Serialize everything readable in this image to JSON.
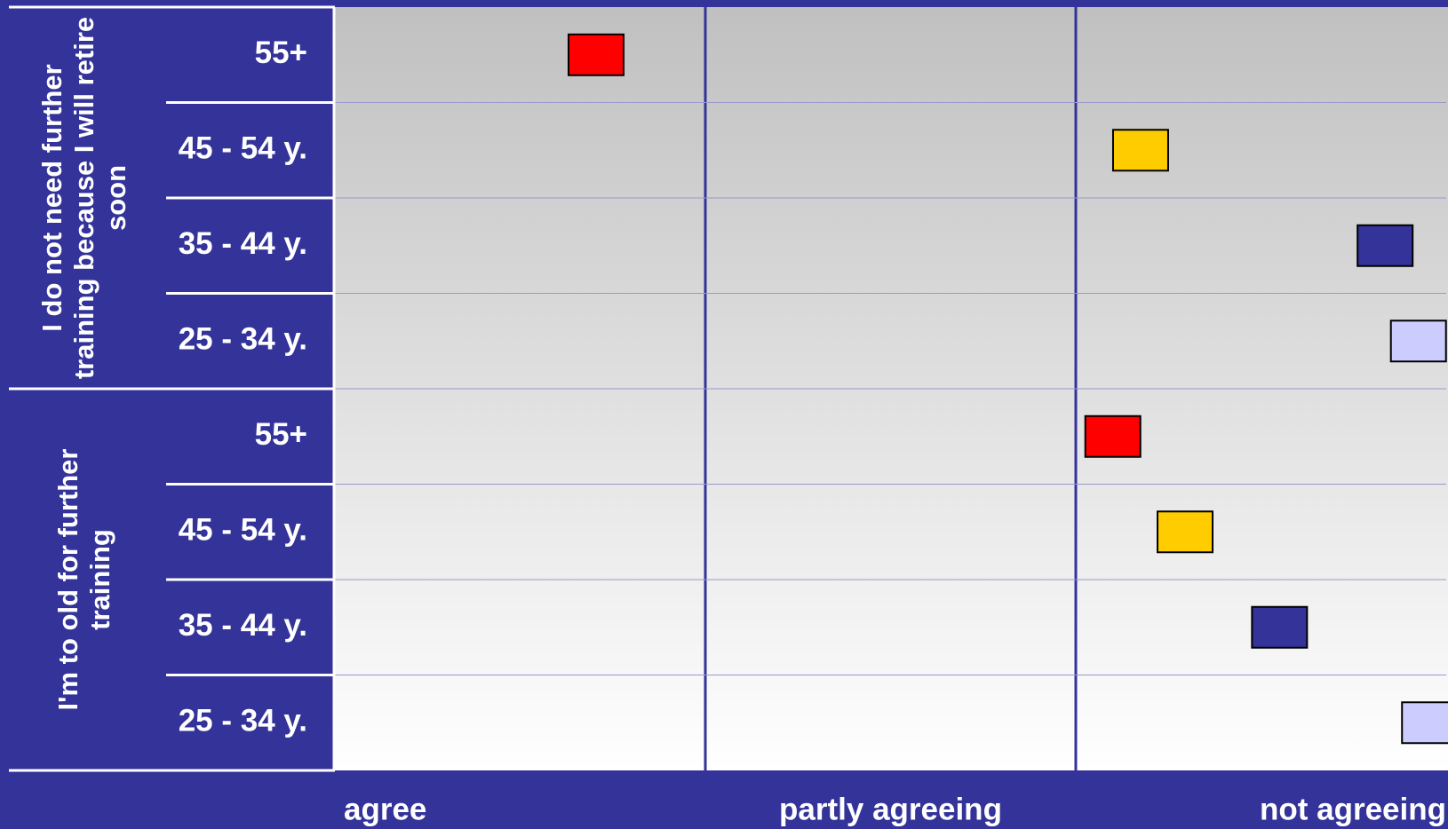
{
  "chart_data": {
    "type": "dot",
    "categories": [
      "55+",
      "45 - 54 y.",
      "35 - 44 y.",
      "25 - 34 y."
    ],
    "colors": [
      "#ff0000",
      "#ffcc00",
      "#333399",
      "#ccccff"
    ],
    "series": [
      {
        "name": "I do not need further training because I will retire soon",
        "values": [
          1.47,
          2.45,
          2.89,
          2.95
        ]
      },
      {
        "name": "I'm to old for further training",
        "values": [
          2.4,
          2.53,
          2.7,
          2.97
        ]
      }
    ],
    "xlim": [
      1,
      3
    ],
    "xticks": [
      {
        "value": 1,
        "label": "agree"
      },
      {
        "value": 2,
        "label": "partly agreeing"
      },
      {
        "value": 3,
        "label": "not agreeing"
      }
    ]
  }
}
